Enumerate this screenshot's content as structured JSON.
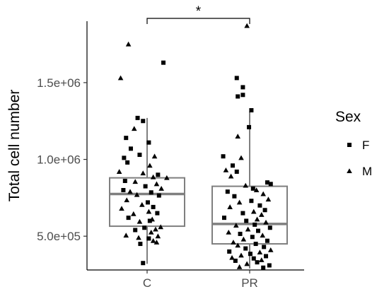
{
  "chart_data": {
    "type": "box",
    "title": "",
    "xlabel": "",
    "ylabel": "Total cell number",
    "ylim": [
      280000,
      1900000
    ],
    "categories": [
      "C",
      "PR"
    ],
    "y_ticks": [
      500000,
      1000000,
      1500000
    ],
    "y_tick_labels": [
      "5.0e+05",
      "1.0e+06",
      "1.5e+06"
    ],
    "grid": false,
    "box_color": "#7f7f7f",
    "point_color": "#000000",
    "boxes": [
      {
        "category": "C",
        "q1": 565000,
        "median": 775000,
        "q3": 880000,
        "whisker_low": 320000,
        "whisker_high": 1270000
      },
      {
        "category": "PR",
        "q1": 450000,
        "median": 580000,
        "q3": 825000,
        "whisker_low": 290000,
        "whisker_high": 1310000
      }
    ],
    "legend": {
      "title": "Sex",
      "placement": "right",
      "entries": [
        {
          "label": "F",
          "shape": "square"
        },
        {
          "label": "M",
          "shape": "triangle"
        }
      ]
    },
    "significance": {
      "label": "*",
      "between": [
        "C",
        "PR"
      ]
    },
    "points": [
      {
        "group": "C",
        "sex": "M",
        "jitter": -0.55,
        "y": 1750000
      },
      {
        "group": "C",
        "sex": "F",
        "jitter": 0.48,
        "y": 1630000
      },
      {
        "group": "C",
        "sex": "M",
        "jitter": -0.78,
        "y": 1530000
      },
      {
        "group": "C",
        "sex": "F",
        "jitter": -0.28,
        "y": 1270000
      },
      {
        "group": "C",
        "sex": "F",
        "jitter": -0.12,
        "y": 1250000
      },
      {
        "group": "C",
        "sex": "M",
        "jitter": -0.38,
        "y": 1200000
      },
      {
        "group": "C",
        "sex": "F",
        "jitter": -0.62,
        "y": 1140000
      },
      {
        "group": "C",
        "sex": "F",
        "jitter": 0.05,
        "y": 1110000
      },
      {
        "group": "C",
        "sex": "F",
        "jitter": -0.48,
        "y": 1070000
      },
      {
        "group": "C",
        "sex": "F",
        "jitter": -0.22,
        "y": 1030000
      },
      {
        "group": "C",
        "sex": "F",
        "jitter": -0.68,
        "y": 1010000
      },
      {
        "group": "C",
        "sex": "M",
        "jitter": 0.22,
        "y": 1020000
      },
      {
        "group": "C",
        "sex": "F",
        "jitter": -0.58,
        "y": 980000
      },
      {
        "group": "C",
        "sex": "M",
        "jitter": 0.08,
        "y": 960000
      },
      {
        "group": "C",
        "sex": "M",
        "jitter": -0.82,
        "y": 920000
      },
      {
        "group": "C",
        "sex": "M",
        "jitter": -0.12,
        "y": 910000
      },
      {
        "group": "C",
        "sex": "F",
        "jitter": 0.32,
        "y": 900000
      },
      {
        "group": "C",
        "sex": "M",
        "jitter": 0.18,
        "y": 885000
      },
      {
        "group": "C",
        "sex": "M",
        "jitter": 0.58,
        "y": 880000
      },
      {
        "group": "C",
        "sex": "F",
        "jitter": -0.65,
        "y": 860000
      },
      {
        "group": "C",
        "sex": "M",
        "jitter": -0.35,
        "y": 855000
      },
      {
        "group": "C",
        "sex": "M",
        "jitter": 0.28,
        "y": 840000
      },
      {
        "group": "C",
        "sex": "F",
        "jitter": -0.05,
        "y": 825000
      },
      {
        "group": "C",
        "sex": "M",
        "jitter": 0.42,
        "y": 810000
      },
      {
        "group": "C",
        "sex": "F",
        "jitter": -0.7,
        "y": 800000
      },
      {
        "group": "C",
        "sex": "M",
        "jitter": -0.5,
        "y": 790000
      },
      {
        "group": "C",
        "sex": "F",
        "jitter": 0.12,
        "y": 785000
      },
      {
        "group": "C",
        "sex": "M",
        "jitter": -0.3,
        "y": 770000
      },
      {
        "group": "C",
        "sex": "F",
        "jitter": 0.35,
        "y": 765000
      },
      {
        "group": "C",
        "sex": "M",
        "jitter": -0.6,
        "y": 735000
      },
      {
        "group": "C",
        "sex": "F",
        "jitter": 0.02,
        "y": 720000
      },
      {
        "group": "C",
        "sex": "M",
        "jitter": -0.15,
        "y": 705000
      },
      {
        "group": "C",
        "sex": "F",
        "jitter": 0.18,
        "y": 690000
      },
      {
        "group": "C",
        "sex": "M",
        "jitter": -0.75,
        "y": 680000
      },
      {
        "group": "C",
        "sex": "M",
        "jitter": 0.05,
        "y": 660000
      },
      {
        "group": "C",
        "sex": "F",
        "jitter": 0.3,
        "y": 650000
      },
      {
        "group": "C",
        "sex": "M",
        "jitter": -0.4,
        "y": 645000
      },
      {
        "group": "C",
        "sex": "F",
        "jitter": -0.55,
        "y": 620000
      },
      {
        "group": "C",
        "sex": "M",
        "jitter": 0.15,
        "y": 610000
      },
      {
        "group": "C",
        "sex": "F",
        "jitter": 0.08,
        "y": 600000
      },
      {
        "group": "C",
        "sex": "M",
        "jitter": -0.22,
        "y": 595000
      },
      {
        "group": "C",
        "sex": "M",
        "jitter": 0.4,
        "y": 560000
      },
      {
        "group": "C",
        "sex": "F",
        "jitter": -0.08,
        "y": 555000
      },
      {
        "group": "C",
        "sex": "M",
        "jitter": 0.25,
        "y": 545000
      },
      {
        "group": "C",
        "sex": "F",
        "jitter": -0.35,
        "y": 540000
      },
      {
        "group": "C",
        "sex": "M",
        "jitter": 0.12,
        "y": 525000
      },
      {
        "group": "C",
        "sex": "M",
        "jitter": -0.62,
        "y": 505000
      },
      {
        "group": "C",
        "sex": "M",
        "jitter": 0.32,
        "y": 500000
      },
      {
        "group": "C",
        "sex": "M",
        "jitter": -0.25,
        "y": 490000
      },
      {
        "group": "C",
        "sex": "F",
        "jitter": 0.05,
        "y": 485000
      },
      {
        "group": "C",
        "sex": "M",
        "jitter": 0.18,
        "y": 470000
      },
      {
        "group": "C",
        "sex": "M",
        "jitter": 0.28,
        "y": 460000
      },
      {
        "group": "C",
        "sex": "F",
        "jitter": -0.2,
        "y": 450000
      },
      {
        "group": "C",
        "sex": "F",
        "jitter": -0.12,
        "y": 325000
      },
      {
        "group": "PR",
        "sex": "M",
        "jitter": -0.08,
        "y": 1870000
      },
      {
        "group": "PR",
        "sex": "F",
        "jitter": -0.38,
        "y": 1530000
      },
      {
        "group": "PR",
        "sex": "F",
        "jitter": -0.2,
        "y": 1470000
      },
      {
        "group": "PR",
        "sex": "F",
        "jitter": -0.35,
        "y": 1410000
      },
      {
        "group": "PR",
        "sex": "F",
        "jitter": -0.2,
        "y": 1420000
      },
      {
        "group": "PR",
        "sex": "F",
        "jitter": 0.05,
        "y": 1320000
      },
      {
        "group": "PR",
        "sex": "F",
        "jitter": -0.02,
        "y": 1210000
      },
      {
        "group": "PR",
        "sex": "M",
        "jitter": -0.35,
        "y": 1150000
      },
      {
        "group": "PR",
        "sex": "F",
        "jitter": -0.78,
        "y": 1020000
      },
      {
        "group": "PR",
        "sex": "M",
        "jitter": -0.25,
        "y": 1010000
      },
      {
        "group": "PR",
        "sex": "F",
        "jitter": -0.5,
        "y": 960000
      },
      {
        "group": "PR",
        "sex": "M",
        "jitter": -0.7,
        "y": 930000
      },
      {
        "group": "PR",
        "sex": "F",
        "jitter": -0.38,
        "y": 920000
      },
      {
        "group": "PR",
        "sex": "M",
        "jitter": -0.55,
        "y": 890000
      },
      {
        "group": "PR",
        "sex": "F",
        "jitter": 0.52,
        "y": 850000
      },
      {
        "group": "PR",
        "sex": "F",
        "jitter": 0.62,
        "y": 840000
      },
      {
        "group": "PR",
        "sex": "M",
        "jitter": -0.12,
        "y": 830000
      },
      {
        "group": "PR",
        "sex": "F",
        "jitter": 0.1,
        "y": 810000
      },
      {
        "group": "PR",
        "sex": "M",
        "jitter": 0.2,
        "y": 800000
      },
      {
        "group": "PR",
        "sex": "F",
        "jitter": -0.65,
        "y": 790000
      },
      {
        "group": "PR",
        "sex": "M",
        "jitter": 0.4,
        "y": 775000
      },
      {
        "group": "PR",
        "sex": "F",
        "jitter": -0.45,
        "y": 760000
      },
      {
        "group": "PR",
        "sex": "M",
        "jitter": 0.55,
        "y": 740000
      },
      {
        "group": "PR",
        "sex": "F",
        "jitter": 0.05,
        "y": 730000
      },
      {
        "group": "PR",
        "sex": "M",
        "jitter": -0.3,
        "y": 720000
      },
      {
        "group": "PR",
        "sex": "F",
        "jitter": 0.3,
        "y": 700000
      },
      {
        "group": "PR",
        "sex": "M",
        "jitter": -0.58,
        "y": 690000
      },
      {
        "group": "PR",
        "sex": "F",
        "jitter": 0.45,
        "y": 670000
      },
      {
        "group": "PR",
        "sex": "M",
        "jitter": 0.12,
        "y": 660000
      },
      {
        "group": "PR",
        "sex": "F",
        "jitter": -0.2,
        "y": 650000
      },
      {
        "group": "PR",
        "sex": "M",
        "jitter": 0.35,
        "y": 640000
      },
      {
        "group": "PR",
        "sex": "F",
        "jitter": -0.75,
        "y": 620000
      },
      {
        "group": "PR",
        "sex": "M",
        "jitter": 0.22,
        "y": 610000
      },
      {
        "group": "PR",
        "sex": "F",
        "jitter": -0.1,
        "y": 600000
      },
      {
        "group": "PR",
        "sex": "M",
        "jitter": 0.48,
        "y": 590000
      },
      {
        "group": "PR",
        "sex": "F",
        "jitter": 0.15,
        "y": 575000
      },
      {
        "group": "PR",
        "sex": "M",
        "jitter": -0.4,
        "y": 570000
      },
      {
        "group": "PR",
        "sex": "F",
        "jitter": 0.6,
        "y": 555000
      },
      {
        "group": "PR",
        "sex": "M",
        "jitter": -0.05,
        "y": 545000
      },
      {
        "group": "PR",
        "sex": "F",
        "jitter": 0.25,
        "y": 535000
      },
      {
        "group": "PR",
        "sex": "M",
        "jitter": -0.62,
        "y": 525000
      },
      {
        "group": "PR",
        "sex": "F",
        "jitter": -0.28,
        "y": 515000
      },
      {
        "group": "PR",
        "sex": "M",
        "jitter": 0.38,
        "y": 505000
      },
      {
        "group": "PR",
        "sex": "F",
        "jitter": 0.08,
        "y": 495000
      },
      {
        "group": "PR",
        "sex": "M",
        "jitter": -0.18,
        "y": 480000
      },
      {
        "group": "PR",
        "sex": "F",
        "jitter": 0.52,
        "y": 470000
      },
      {
        "group": "PR",
        "sex": "M",
        "jitter": -0.48,
        "y": 460000
      },
      {
        "group": "PR",
        "sex": "F",
        "jitter": 0.18,
        "y": 450000
      },
      {
        "group": "PR",
        "sex": "M",
        "jitter": -0.35,
        "y": 440000
      },
      {
        "group": "PR",
        "sex": "F",
        "jitter": 0.42,
        "y": 430000
      },
      {
        "group": "PR",
        "sex": "F",
        "jitter": -0.12,
        "y": 420000
      },
      {
        "group": "PR",
        "sex": "M",
        "jitter": 0.62,
        "y": 410000
      },
      {
        "group": "PR",
        "sex": "F",
        "jitter": -0.6,
        "y": 400000
      },
      {
        "group": "PR",
        "sex": "M",
        "jitter": 0.3,
        "y": 395000
      },
      {
        "group": "PR",
        "sex": "F",
        "jitter": 0.02,
        "y": 385000
      },
      {
        "group": "PR",
        "sex": "M",
        "jitter": -0.25,
        "y": 375000
      },
      {
        "group": "PR",
        "sex": "F",
        "jitter": 0.48,
        "y": 370000
      },
      {
        "group": "PR",
        "sex": "M",
        "jitter": -0.52,
        "y": 360000
      },
      {
        "group": "PR",
        "sex": "F",
        "jitter": 0.12,
        "y": 355000
      },
      {
        "group": "PR",
        "sex": "M",
        "jitter": 0.35,
        "y": 345000
      },
      {
        "group": "PR",
        "sex": "F",
        "jitter": -0.42,
        "y": 340000
      },
      {
        "group": "PR",
        "sex": "F",
        "jitter": 0.22,
        "y": 330000
      },
      {
        "group": "PR",
        "sex": "M",
        "jitter": -0.08,
        "y": 320000
      },
      {
        "group": "PR",
        "sex": "F",
        "jitter": 0.58,
        "y": 310000
      },
      {
        "group": "PR",
        "sex": "M",
        "jitter": -0.3,
        "y": 300000
      },
      {
        "group": "PR",
        "sex": "F",
        "jitter": 0.4,
        "y": 295000
      }
    ]
  }
}
